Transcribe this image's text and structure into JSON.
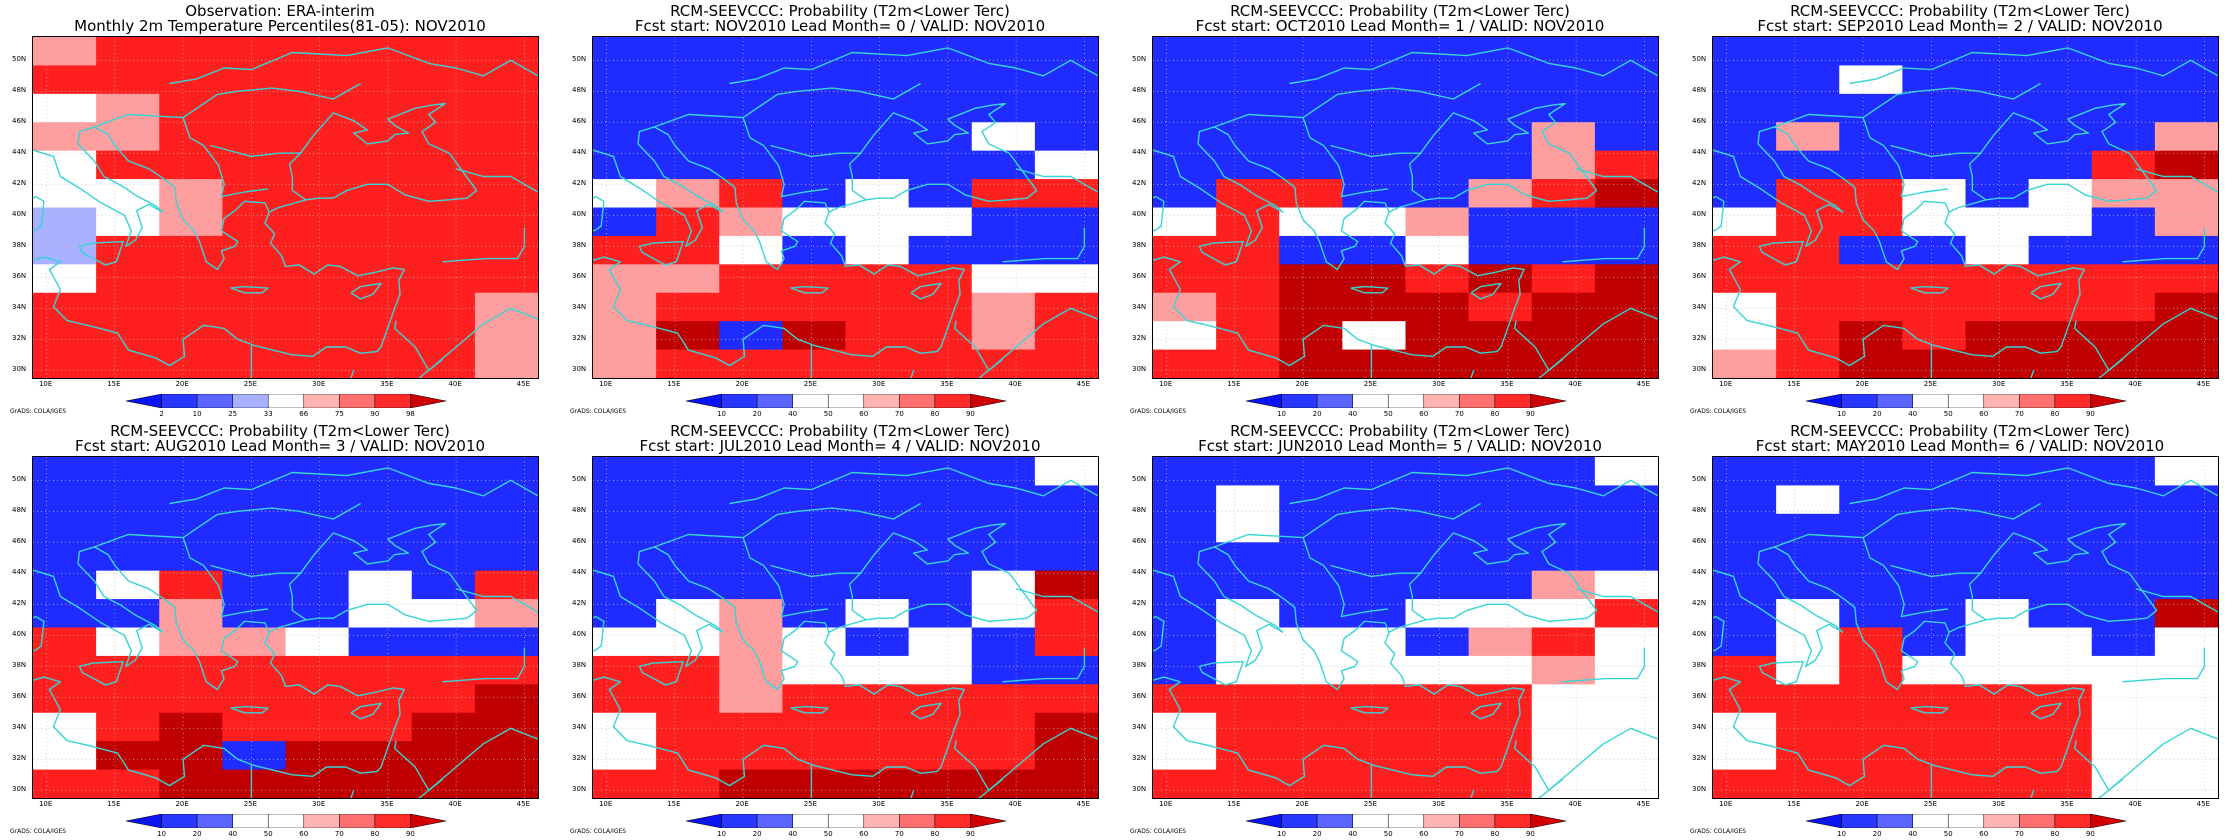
{
  "map_extent": {
    "lon_min": 9,
    "lon_max": 46,
    "lat_min": 29.5,
    "lat_max": 51.5
  },
  "lat_ticks": [
    "30N",
    "32N",
    "34N",
    "36N",
    "38N",
    "40N",
    "42N",
    "44N",
    "46N",
    "48N",
    "50N"
  ],
  "lon_ticks": [
    "10E",
    "15E",
    "20E",
    "25E",
    "30E",
    "35E",
    "40E",
    "45E"
  ],
  "credit": "GrADS: COLA/IGES",
  "colors": {
    "coastline": "#36d5d5",
    "grid": "#bfbfbf",
    "blue": "#1f2bff",
    "white": "#ffffff",
    "light_red": "#ff9e9e",
    "red": "#ff1f1f",
    "dark_red": "#c00000",
    "darkest_red": "#a00000",
    "lavender": "#a8b0ff",
    "mid_blue": "#6070ff"
  },
  "colorbar_obs": {
    "labels": [
      "2",
      "10",
      "25",
      "33",
      "66",
      "75",
      "90",
      "98"
    ],
    "colors": [
      "#0a14f0",
      "#2838ff",
      "#5a66ff",
      "#a8b0ff",
      "#ffffff",
      "#ffb4b4",
      "#ff7070",
      "#ff2a2a",
      "#d00000"
    ]
  },
  "colorbar_prob": {
    "labels": [
      "10",
      "20",
      "40",
      "50",
      "60",
      "70",
      "80",
      "90"
    ],
    "colors": [
      "#0a14f0",
      "#2838ff",
      "#5a66ff",
      "#ffffff",
      "#ffffff",
      "#ffb4b4",
      "#ff7070",
      "#ff2a2a",
      "#d00000"
    ]
  },
  "panels": [
    {
      "title1": "Observation: ERA-interim",
      "title2": "Monthly 2m Temperature Percentiles(81-05): NOV2010",
      "colorbar": "obs",
      "grid_cols": 8,
      "grid_rows": 12,
      "cells": [
        "pRRRRRRR",
        "RRRRRRRR",
        "WpRRRRRR",
        "ppRRRRRR",
        "WRRRRRRR",
        "WWpRRRRR",
        "LWpRRRRR",
        "LRRRRRRR",
        "WRRRRRRR",
        "RRRRRRRp",
        "RRRRRRRp",
        "RRRRRRRp"
      ]
    },
    {
      "title1": "RCM-SEEVCCC: Probability (T2m<Lower Terc)",
      "title2": "Fcst start: NOV2010   Lead Month= 0 / VALID: NOV2010",
      "colorbar": "prob",
      "grid_cols": 8,
      "grid_rows": 12,
      "cells": [
        "BBBBBBBB",
        "BBBBBBBB",
        "BBBBBBBB",
        "BBBBBBWB",
        "BBBBBBBW",
        "WpRBWBRR",
        "BRpWWWBB",
        "RRWBWBBB",
        "ppRRRRWW",
        "pRRRRRpR",
        "pDBDRRpR",
        "pRRRRRRR"
      ]
    },
    {
      "title1": "RCM-SEEVCCC: Probability (T2m<Lower Terc)",
      "title2": "Fcst start: OCT2010   Lead Month= 1 / VALID: NOV2010",
      "colorbar": "prob",
      "grid_cols": 8,
      "grid_rows": 12,
      "cells": [
        "BBBBBBBB",
        "BBBBBBBB",
        "BBBBBBBB",
        "BBBBBBpB",
        "BBBBBBpR",
        "BRRBBpRD",
        "WRWWpBBB",
        "RRBBWBBB",
        "RRDDRDRD",
        "pRDDDRDD",
        "WRDWDDDD",
        "RRDDDDDD"
      ]
    },
    {
      "title1": "RCM-SEEVCCC: Probability (T2m<Lower Terc)",
      "title2": "Fcst start: SEP2010   Lead Month= 2 / VALID: NOV2010",
      "colorbar": "prob",
      "grid_cols": 8,
      "grid_rows": 12,
      "cells": [
        "BBBBBBBB",
        "BBWBBBBB",
        "BBBBBBBB",
        "BpBBBBBp",
        "BBBBBBRD",
        "BRRWBWpp",
        "WRRWWWBp",
        "RRBBWBBB",
        "RRRRRRRR",
        "WRRRRRRD",
        "WRDRDDDD",
        "pRDDDDDD"
      ]
    },
    {
      "title1": "RCM-SEEVCCC: Probability (T2m<Lower Terc)",
      "title2": "Fcst start: AUG2010   Lead Month= 3 / VALID: NOV2010",
      "colorbar": "prob",
      "grid_cols": 8,
      "grid_rows": 12,
      "cells": [
        "BBBBBBBB",
        "BBBBBBBB",
        "BBBBBBBB",
        "BBBBBBBB",
        "BWRBBWBR",
        "BBpBBWWp",
        "RWppWBBB",
        "RRRRRRRR",
        "RRRRRRRD",
        "WRDRRRDD",
        "WDDBDDDD",
        "RRDDDDDD"
      ]
    },
    {
      "title1": "RCM-SEEVCCC: Probability (T2m<Lower Terc)",
      "title2": "Fcst start: JUL2010   Lead Month= 4 / VALID: NOV2010",
      "colorbar": "prob",
      "grid_cols": 8,
      "grid_rows": 12,
      "cells": [
        "BBBBBBBW",
        "BBBBBBBB",
        "BBBBBBBB",
        "BBBBBBBB",
        "BBBBBBWD",
        "BWpBWBWR",
        "WWpWBWBR",
        "RRpWWWBB",
        "RRpRRRRR",
        "WRRRRRRD",
        "WRRRRRRD",
        "RRDDDDDD"
      ]
    },
    {
      "title1": "RCM-SEEVCCC: Probability (T2m<Lower Terc)",
      "title2": "Fcst start: JUN2010   Lead Month= 5 / VALID: NOV2010",
      "colorbar": "prob",
      "grid_cols": 8,
      "grid_rows": 12,
      "cells": [
        "BBBBBBBW",
        "BWBBBBBB",
        "BWBBBBBB",
        "BBBBBBBB",
        "BBBBBBpW",
        "BWBBWWWR",
        "BWWWBpRW",
        "BWWWWWpW",
        "RRRRRRWW",
        "WRRRRRWW",
        "WRRRRRWW",
        "RRRRRRWW"
      ]
    },
    {
      "title1": "RCM-SEEVCCC: Probability (T2m<Lower Terc)",
      "title2": "Fcst start: MAY2010   Lead Month= 6 / VALID: NOV2010",
      "colorbar": "prob",
      "grid_cols": 8,
      "grid_rows": 12,
      "cells": [
        "BBBBBBBW",
        "BWBBBBBB",
        "BBBBBBBB",
        "BBBBBBBB",
        "BBBBBBBB",
        "BWBBWBBD",
        "BWRBWWBW",
        "RWRWWWWW",
        "RRRRRRWW",
        "WRRRRRWW",
        "WRRRRRWW",
        "RRRRRRWW"
      ]
    }
  ]
}
